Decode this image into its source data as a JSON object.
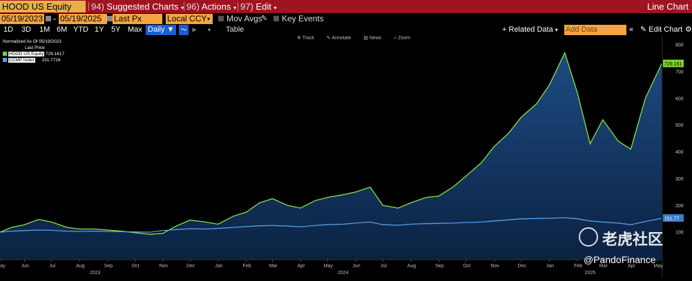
{
  "toolbar_top": {
    "ticker": "HOOD US Equity",
    "menu": [
      {
        "num": "94)",
        "label": "Suggested Charts"
      },
      {
        "num": "96)",
        "label": "Actions"
      },
      {
        "num": "97)",
        "label": "Edit"
      }
    ],
    "title": "Line Chart"
  },
  "settings_row": {
    "start_date": "05/19/2023",
    "dash": "-",
    "end_date": "05/19/2025",
    "field": "Last Px",
    "currency": "Local CCY",
    "mov_avgs": "Mov Avgs",
    "key_events": "Key Events"
  },
  "range_row": {
    "ranges": [
      "1D",
      "3D",
      "1M",
      "6M",
      "YTD",
      "1Y",
      "5Y",
      "Max"
    ],
    "period": "Daily",
    "table": "Table",
    "related": "Related Data",
    "add_data_placeholder": "Add Data",
    "edit_chart": "Edit Chart"
  },
  "chart_tools": {
    "track": "Track",
    "annotate": "Annotate",
    "news": "News",
    "zoom": "Zoom"
  },
  "legend": {
    "normalized": "Normalized As Of 05/19/2023",
    "header": "Last Price",
    "items": [
      {
        "name": "HOOD US Equity",
        "value": "729.1617",
        "color": "#7ed321"
      },
      {
        "name": "CCMP Index",
        "value": "151.7716",
        "color": "#5aa0e6"
      }
    ]
  },
  "watermark": {
    "text": "老虎社区",
    "handle": "@PandoFinance"
  },
  "chart_data": {
    "type": "line",
    "x": [
      "2023-05-19",
      "2023-06-01",
      "2023-06-15",
      "2023-07-01",
      "2023-07-15",
      "2023-08-01",
      "2023-08-15",
      "2023-09-01",
      "2023-09-15",
      "2023-10-01",
      "2023-10-15",
      "2023-11-01",
      "2023-11-15",
      "2023-12-01",
      "2023-12-15",
      "2024-01-01",
      "2024-01-15",
      "2024-02-01",
      "2024-02-15",
      "2024-03-01",
      "2024-03-15",
      "2024-04-01",
      "2024-04-15",
      "2024-05-01",
      "2024-05-15",
      "2024-06-01",
      "2024-06-15",
      "2024-07-01",
      "2024-07-15",
      "2024-08-01",
      "2024-08-15",
      "2024-09-01",
      "2024-09-15",
      "2024-10-01",
      "2024-10-15",
      "2024-11-01",
      "2024-11-15",
      "2024-12-01",
      "2024-12-15",
      "2025-01-01",
      "2025-01-15",
      "2025-02-01",
      "2025-02-15",
      "2025-03-01",
      "2025-03-15",
      "2025-04-01",
      "2025-04-15",
      "2025-05-01",
      "2025-05-19"
    ],
    "series": [
      {
        "name": "HOOD US Equity",
        "color": "#8ee53f",
        "values": [
          100,
          118,
          128,
          148,
          138,
          118,
          112,
          112,
          108,
          104,
          98,
          92,
          96,
          125,
          145,
          138,
          130,
          160,
          175,
          210,
          225,
          200,
          190,
          218,
          230,
          240,
          250,
          268,
          200,
          190,
          210,
          230,
          235,
          270,
          310,
          360,
          420,
          470,
          530,
          580,
          650,
          770,
          620,
          430,
          520,
          440,
          410,
          600,
          729
        ]
      },
      {
        "name": "CCMP Index",
        "color": "#5aa0e6",
        "values": [
          100,
          104,
          106,
          108,
          107,
          104,
          103,
          104,
          103,
          102,
          101,
          100,
          106,
          110,
          113,
          112,
          114,
          118,
          121,
          124,
          125,
          123,
          120,
          125,
          128,
          130,
          134,
          138,
          128,
          126,
          130,
          132,
          133,
          134,
          136,
          138,
          142,
          146,
          150,
          151,
          152,
          154,
          150,
          142,
          138,
          134,
          128,
          140,
          151.77
        ]
      }
    ],
    "ylim": [
      0,
      800
    ],
    "yticks": [
      100,
      200,
      300,
      400,
      500,
      600,
      700,
      800
    ],
    "months": [
      {
        "label": "May",
        "date": "2023-05-19"
      },
      {
        "label": "Jun",
        "date": "2023-06-15"
      },
      {
        "label": "Jul",
        "date": "2023-07-15"
      },
      {
        "label": "Aug",
        "date": "2023-08-15"
      },
      {
        "label": "Sep",
        "date": "2023-09-15"
      },
      {
        "label": "Oct",
        "date": "2023-10-15"
      },
      {
        "label": "Nov",
        "date": "2023-11-15"
      },
      {
        "label": "Dec",
        "date": "2023-12-15"
      },
      {
        "label": "Jan",
        "date": "2024-01-15"
      },
      {
        "label": "Feb",
        "date": "2024-02-15"
      },
      {
        "label": "Mar",
        "date": "2024-03-15"
      },
      {
        "label": "Apr",
        "date": "2024-04-15"
      },
      {
        "label": "May",
        "date": "2024-05-15"
      },
      {
        "label": "Jun",
        "date": "2024-06-15"
      },
      {
        "label": "Jul",
        "date": "2024-07-15"
      },
      {
        "label": "Aug",
        "date": "2024-08-15"
      },
      {
        "label": "Sep",
        "date": "2024-09-15"
      },
      {
        "label": "Oct",
        "date": "2024-10-15"
      },
      {
        "label": "Nov",
        "date": "2024-11-15"
      },
      {
        "label": "Dec",
        "date": "2024-12-15"
      },
      {
        "label": "Jan",
        "date": "2025-01-15"
      },
      {
        "label": "Feb",
        "date": "2025-02-15"
      },
      {
        "label": "Mar",
        "date": "2025-03-15"
      },
      {
        "label": "Apr",
        "date": "2025-04-15"
      },
      {
        "label": "May",
        "date": "2025-05-15"
      }
    ],
    "years": [
      {
        "label": "2023",
        "date": "2023-09-01"
      },
      {
        "label": "2024",
        "date": "2024-06-01"
      },
      {
        "label": "2025",
        "date": "2025-03-01"
      }
    ],
    "last_labels": [
      "729.161",
      "151.77"
    ]
  }
}
